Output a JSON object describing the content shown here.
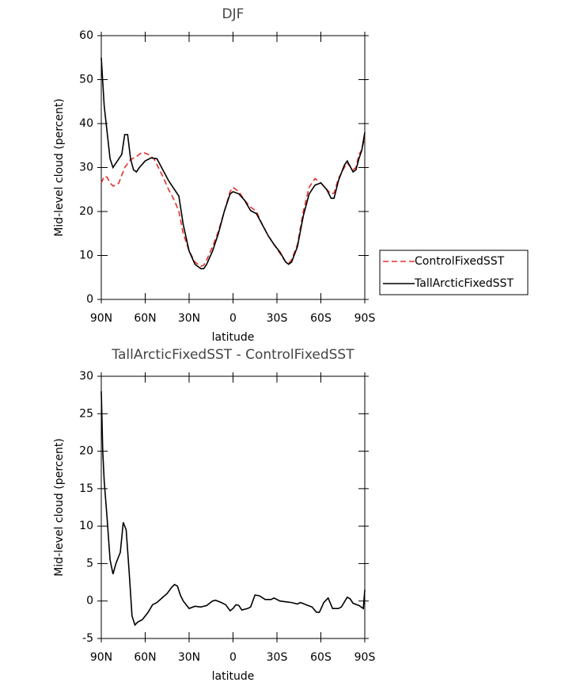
{
  "chart_data": [
    {
      "type": "line",
      "title": "DJF",
      "xlabel": "latitude",
      "ylabel": "Mid-level cloud (percent)",
      "xlim": [
        90,
        -90
      ],
      "xticks": [
        {
          "value": 90,
          "label": "90N"
        },
        {
          "value": 60,
          "label": "60N"
        },
        {
          "value": 30,
          "label": "30N"
        },
        0,
        {
          "value": -30,
          "label": "30S"
        },
        {
          "value": -60,
          "label": "60S"
        },
        {
          "value": -90,
          "label": "90S"
        }
      ],
      "ylim": [
        0,
        60
      ],
      "yticks": [
        0,
        10,
        20,
        30,
        40,
        50,
        60
      ],
      "legend": "right",
      "series": [
        {
          "name": "ControlFixedSST",
          "color": "#e8302a",
          "dash": true,
          "x": [
            90,
            88,
            86,
            84,
            82,
            80,
            78,
            74,
            70,
            66,
            62,
            58,
            54,
            48,
            44,
            40,
            37,
            34,
            30,
            26,
            22,
            20,
            18,
            14,
            10,
            6,
            2,
            0,
            -4,
            -8,
            -12,
            -16,
            -20,
            -24,
            -28,
            -32,
            -36,
            -38,
            -40,
            -44,
            -48,
            -52,
            -56,
            -60,
            -64,
            -67,
            -69,
            -72,
            -76,
            -78,
            -82,
            -84,
            -86,
            -88,
            -90
          ],
          "values": [
            26.5,
            28,
            27.8,
            26.5,
            25.8,
            26,
            26.5,
            30,
            31.8,
            32.5,
            33.5,
            33,
            32,
            28,
            25,
            22.5,
            20,
            15,
            11,
            8.5,
            7.5,
            7.8,
            9,
            12,
            15.5,
            20,
            24.5,
            25.5,
            24.5,
            22.5,
            21,
            20,
            17,
            14.5,
            12.5,
            10.5,
            8.5,
            8.2,
            9,
            12.5,
            20,
            25.5,
            27.5,
            26.5,
            25,
            24,
            24.2,
            27.5,
            30,
            31,
            29.5,
            30,
            33,
            34,
            37
          ]
        },
        {
          "name": "TallArcticFixedSST",
          "color": "#000000",
          "dash": false,
          "x": [
            90,
            88,
            86,
            84,
            82,
            80,
            78,
            76,
            74,
            72,
            70,
            68,
            66,
            64,
            60,
            56,
            52,
            48,
            44,
            40,
            37,
            34,
            30,
            26,
            22,
            20,
            18,
            14,
            10,
            6,
            2,
            0,
            -4,
            -8,
            -12,
            -16,
            -20,
            -24,
            -28,
            -32,
            -36,
            -38,
            -40,
            -44,
            -48,
            -52,
            -56,
            -60,
            -64,
            -67,
            -69,
            -72,
            -76,
            -78,
            -82,
            -84,
            -86,
            -88,
            -90
          ],
          "values": [
            55,
            44,
            38,
            32,
            30,
            31,
            32,
            33,
            37.5,
            37.5,
            32,
            29.5,
            29,
            30,
            31.5,
            32.2,
            32,
            29.5,
            27,
            25,
            23.5,
            17,
            11,
            8,
            7,
            7,
            8,
            11,
            15,
            20,
            24,
            24.5,
            24,
            22.5,
            20.2,
            19.5,
            17,
            14.5,
            12.5,
            10.8,
            8.5,
            8,
            8.5,
            12,
            19,
            24,
            26,
            26.5,
            25,
            23,
            23,
            27,
            30.5,
            31.5,
            29,
            29.5,
            32,
            34,
            38
          ]
        }
      ]
    },
    {
      "type": "line",
      "title": "TallArcticFixedSST - ControlFixedSST",
      "xlabel": "latitude",
      "ylabel": "Mid-level cloud (percent)",
      "xlim": [
        90,
        -90
      ],
      "xticks": [
        {
          "value": 90,
          "label": "90N"
        },
        {
          "value": 60,
          "label": "60N"
        },
        {
          "value": 30,
          "label": "30N"
        },
        0,
        {
          "value": -30,
          "label": "30S"
        },
        {
          "value": -60,
          "label": "60S"
        },
        {
          "value": -90,
          "label": "90S"
        }
      ],
      "ylim": [
        -5,
        30
      ],
      "yticks": [
        -5,
        0,
        5,
        10,
        15,
        20,
        25,
        30
      ],
      "series": [
        {
          "color": "#000000",
          "dash": false,
          "x": [
            90,
            89,
            88,
            86,
            84,
            82,
            80,
            77,
            75,
            73,
            71,
            69,
            67,
            65,
            62,
            58,
            55,
            52,
            48,
            45,
            42,
            40,
            38,
            36,
            34,
            30,
            26,
            22,
            18,
            14,
            12,
            8,
            5,
            2,
            0,
            -2,
            -4,
            -6,
            -10,
            -12,
            -15,
            -18,
            -22,
            -26,
            -28,
            -32,
            -36,
            -40,
            -44,
            -46,
            -50,
            -54,
            -57,
            -59,
            -62,
            -65,
            -68,
            -72,
            -74,
            -78,
            -80,
            -82,
            -86,
            -89,
            -90
          ],
          "values": [
            28,
            20,
            16,
            11,
            5.5,
            3.6,
            5,
            6.5,
            10.5,
            9.5,
            4,
            -2,
            -3.2,
            -2.8,
            -2.5,
            -1.5,
            -0.5,
            -0.2,
            0.5,
            1,
            1.8,
            2.2,
            2,
            0.8,
            0,
            -1,
            -0.7,
            -0.8,
            -0.6,
            0,
            0.1,
            -0.2,
            -0.5,
            -1.3,
            -1,
            -0.5,
            -0.6,
            -1.2,
            -1,
            -0.8,
            0.8,
            0.7,
            0.2,
            0.2,
            0.4,
            0,
            -0.1,
            -0.2,
            -0.4,
            -0.2,
            -0.5,
            -0.8,
            -1.5,
            -1.5,
            -0.2,
            0.4,
            -1,
            -1,
            -0.8,
            0.5,
            0.3,
            -0.3,
            -0.6,
            -1,
            1.5
          ]
        }
      ]
    }
  ]
}
